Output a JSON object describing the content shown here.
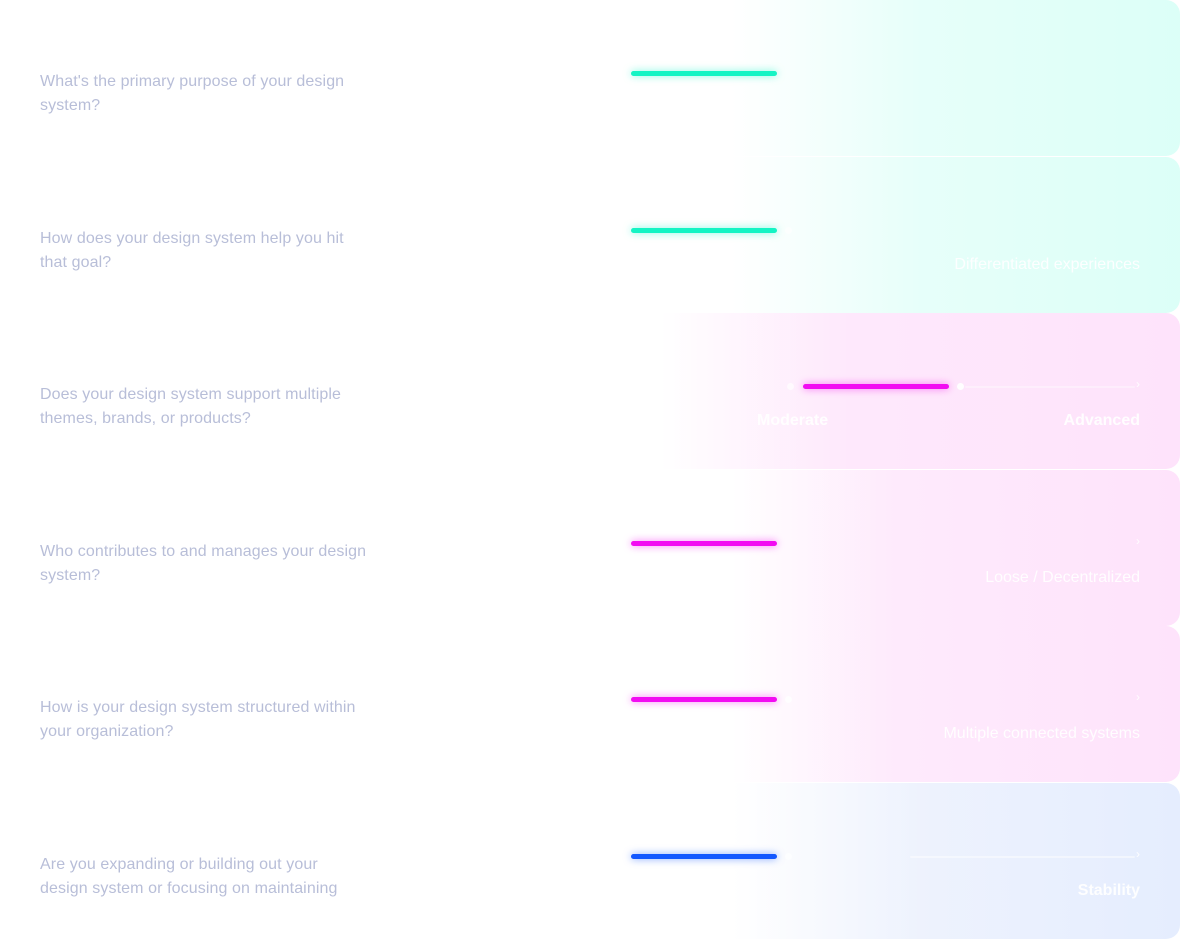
{
  "colors": {
    "teal": "#14f4c4",
    "magenta": "#f20cf2",
    "blue": "#1358ff",
    "question_text": "#b8bed8"
  },
  "rows": [
    {
      "question": "What's the primary purpose of your design system?",
      "value": 0.0,
      "color": "teal",
      "label_left": "",
      "label_right": ""
    },
    {
      "question": "How does your design system help you hit that goal?",
      "value": 0.0,
      "color": "teal",
      "label_left": "",
      "label_right": "Differentiated experiences"
    },
    {
      "question": "Does your design system support multiple themes, brands, or products?",
      "value": 0.5,
      "color": "magenta",
      "label_left": "Moderate",
      "label_right": "Advanced"
    },
    {
      "question": "Who contributes to and manages your design system?",
      "value": 0.0,
      "color": "magenta",
      "label_left": "",
      "label_right": "Loose / Decentralized"
    },
    {
      "question": "How is your design system structured within your organization?",
      "value": 0.0,
      "color": "magenta",
      "label_left": "",
      "label_right": "Multiple connected systems"
    },
    {
      "question": "Are you expanding or building out your design system or focusing on maintaining",
      "value": 0.0,
      "color": "blue",
      "label_left": "",
      "label_right": "Stability"
    }
  ]
}
